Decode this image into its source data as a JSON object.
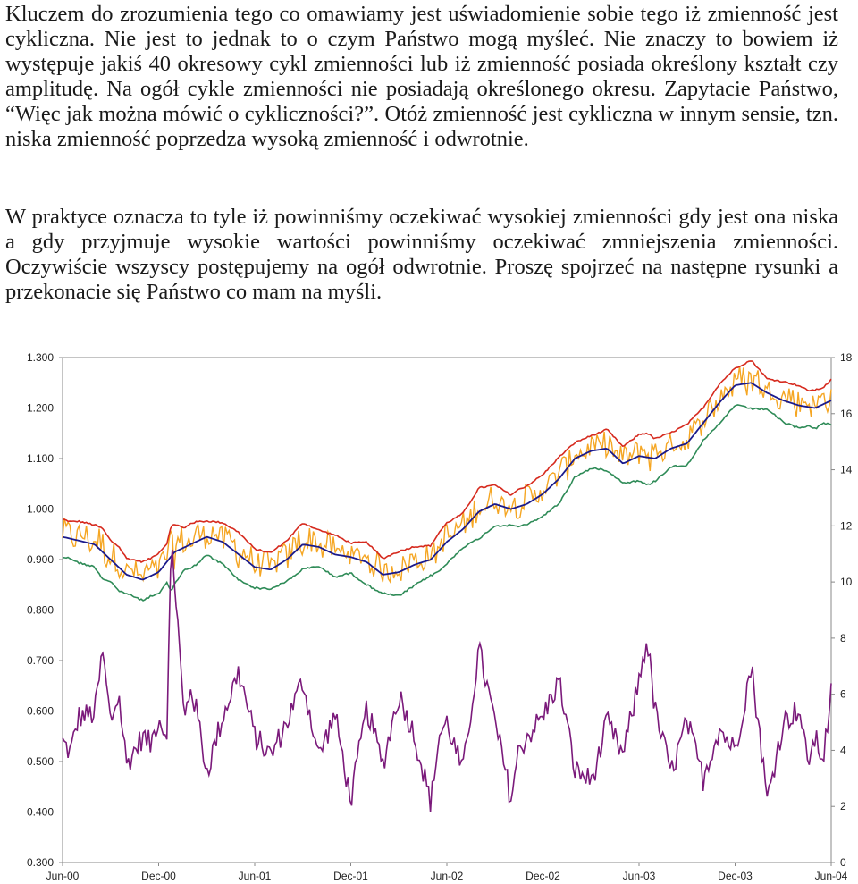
{
  "document": {
    "paragraphs": [
      "Kluczem do zrozumienia tego co omawiamy jest uświadomienie sobie tego iż zmienność jest cykliczna. Nie jest to jednak to o czym Państwo mogą myśleć. Nie znaczy to bowiem iż występuje jakiś 40 okresowy cykl zmienności lub iż zmienność posiada określony kształt czy amplitudę. Na ogół cykle zmienności nie posiadają określonego okresu. Zapytacie Państwo, “Więc jak można mówić o cykliczności?”. Otóż zmienność jest cykliczna w innym sensie, tzn. niska zmienność poprzedza wysoką zmienność i odwrotnie.",
      "W praktyce oznacza to tyle iż powinniśmy oczekiwać wysokiej zmienności gdy jest ona niska a gdy przyjmuje wysokie wartości powinniśmy oczekiwać zmniejszenia zmienności. Oczywiście wszyscy postępujemy na ogół odwrotnie. Proszę spojrzeć na następne rysunki a przekonacie się Państwo co mam na myśli."
    ]
  },
  "chart_data": {
    "type": "line",
    "x_tick_labels": [
      "Jun-00",
      "Dec-00",
      "Jun-01",
      "Dec-01",
      "Jun-02",
      "Dec-02",
      "Jun-03",
      "Dec-03",
      "Jun-04"
    ],
    "y_left": {
      "ticks": [
        "1.300",
        "1.200",
        "1.100",
        "1.000",
        "0.900",
        "0.800",
        "0.700",
        "0.600",
        "0.500",
        "0.400",
        "0.300"
      ],
      "range": [
        0.3,
        1.3
      ]
    },
    "y_right": {
      "ticks": [
        "18",
        "16",
        "14",
        "12",
        "10",
        "8",
        "6",
        "4",
        "2",
        "0"
      ],
      "range": [
        0,
        18
      ]
    },
    "grid": false,
    "legend": "none",
    "series_colors": {
      "price": "#f5a623",
      "upper_band": "#d62a1e",
      "average": "#1a1a8c",
      "lower_band": "#2e8b57",
      "volatility": "#7b1a7b"
    },
    "x_range_months": [
      0,
      48
    ],
    "price_axis": "left",
    "volatility_axis": "right",
    "average_points": [
      [
        0,
        0.945
      ],
      [
        2,
        0.93
      ],
      [
        4,
        0.87
      ],
      [
        5,
        0.86
      ],
      [
        6,
        0.875
      ],
      [
        7,
        0.915
      ],
      [
        8,
        0.93
      ],
      [
        9,
        0.945
      ],
      [
        10,
        0.935
      ],
      [
        11,
        0.91
      ],
      [
        12,
        0.885
      ],
      [
        13,
        0.88
      ],
      [
        14,
        0.9
      ],
      [
        15,
        0.93
      ],
      [
        16,
        0.925
      ],
      [
        17,
        0.91
      ],
      [
        18,
        0.905
      ],
      [
        19,
        0.895
      ],
      [
        20,
        0.87
      ],
      [
        21,
        0.875
      ],
      [
        22,
        0.89
      ],
      [
        23,
        0.9
      ],
      [
        24,
        0.935
      ],
      [
        25,
        0.96
      ],
      [
        26,
        0.995
      ],
      [
        27,
        1.01
      ],
      [
        28,
        1.0
      ],
      [
        29,
        1.01
      ],
      [
        30,
        1.03
      ],
      [
        31,
        1.06
      ],
      [
        32,
        1.1
      ],
      [
        33,
        1.115
      ],
      [
        34,
        1.12
      ],
      [
        35,
        1.09
      ],
      [
        36,
        1.105
      ],
      [
        37,
        1.1
      ],
      [
        38,
        1.12
      ],
      [
        39,
        1.13
      ],
      [
        40,
        1.17
      ],
      [
        41,
        1.21
      ],
      [
        42,
        1.245
      ],
      [
        43,
        1.25
      ],
      [
        44,
        1.23
      ],
      [
        45,
        1.215
      ],
      [
        46,
        1.205
      ],
      [
        47,
        1.2
      ],
      [
        48,
        1.215
      ]
    ],
    "volatility_points": [
      [
        0,
        4.3
      ],
      [
        0.5,
        3.9
      ],
      [
        1,
        5.2
      ],
      [
        2,
        5.3
      ],
      [
        2.5,
        7.5
      ],
      [
        3,
        5.0
      ],
      [
        3.5,
        6.0
      ],
      [
        4,
        3.5
      ],
      [
        5,
        4.5
      ],
      [
        5.5,
        4.2
      ],
      [
        6,
        5.2
      ],
      [
        6.5,
        4.5
      ],
      [
        6.8,
        11.5
      ],
      [
        7.2,
        8.5
      ],
      [
        7.6,
        5.0
      ],
      [
        8,
        6.3
      ],
      [
        8.5,
        5.0
      ],
      [
        9,
        3.2
      ],
      [
        10,
        5.2
      ],
      [
        11,
        6.8
      ],
      [
        12,
        4.5
      ],
      [
        13,
        3.8
      ],
      [
        14,
        5.0
      ],
      [
        15,
        6.5
      ],
      [
        16,
        3.8
      ],
      [
        17,
        5.3
      ],
      [
        18,
        2.2
      ],
      [
        19,
        5.5
      ],
      [
        20,
        3.5
      ],
      [
        21,
        6.0
      ],
      [
        22,
        4.5
      ],
      [
        23,
        2.1
      ],
      [
        23.5,
        4.5
      ],
      [
        24,
        5.0
      ],
      [
        25,
        3.2
      ],
      [
        26,
        7.6
      ],
      [
        27,
        5.0
      ],
      [
        28,
        2.3
      ],
      [
        28.5,
        4.0
      ],
      [
        29,
        4.5
      ],
      [
        30,
        5.2
      ],
      [
        31,
        6.5
      ],
      [
        32,
        3.3
      ],
      [
        33,
        2.9
      ],
      [
        33.5,
        3.8
      ],
      [
        34,
        5.0
      ],
      [
        35,
        3.8
      ],
      [
        36,
        6.5
      ],
      [
        36.5,
        8.0
      ],
      [
        37,
        5.4
      ],
      [
        38,
        3.2
      ],
      [
        39,
        5.0
      ],
      [
        40,
        3.0
      ],
      [
        41,
        4.8
      ],
      [
        42,
        4.0
      ],
      [
        43,
        7.0
      ],
      [
        43.5,
        4.8
      ],
      [
        44,
        2.2
      ],
      [
        45,
        5.0
      ],
      [
        46,
        5.5
      ],
      [
        46.5,
        3.6
      ],
      [
        47,
        4.4
      ],
      [
        47.5,
        3.7
      ],
      [
        48,
        6.0
      ]
    ]
  }
}
